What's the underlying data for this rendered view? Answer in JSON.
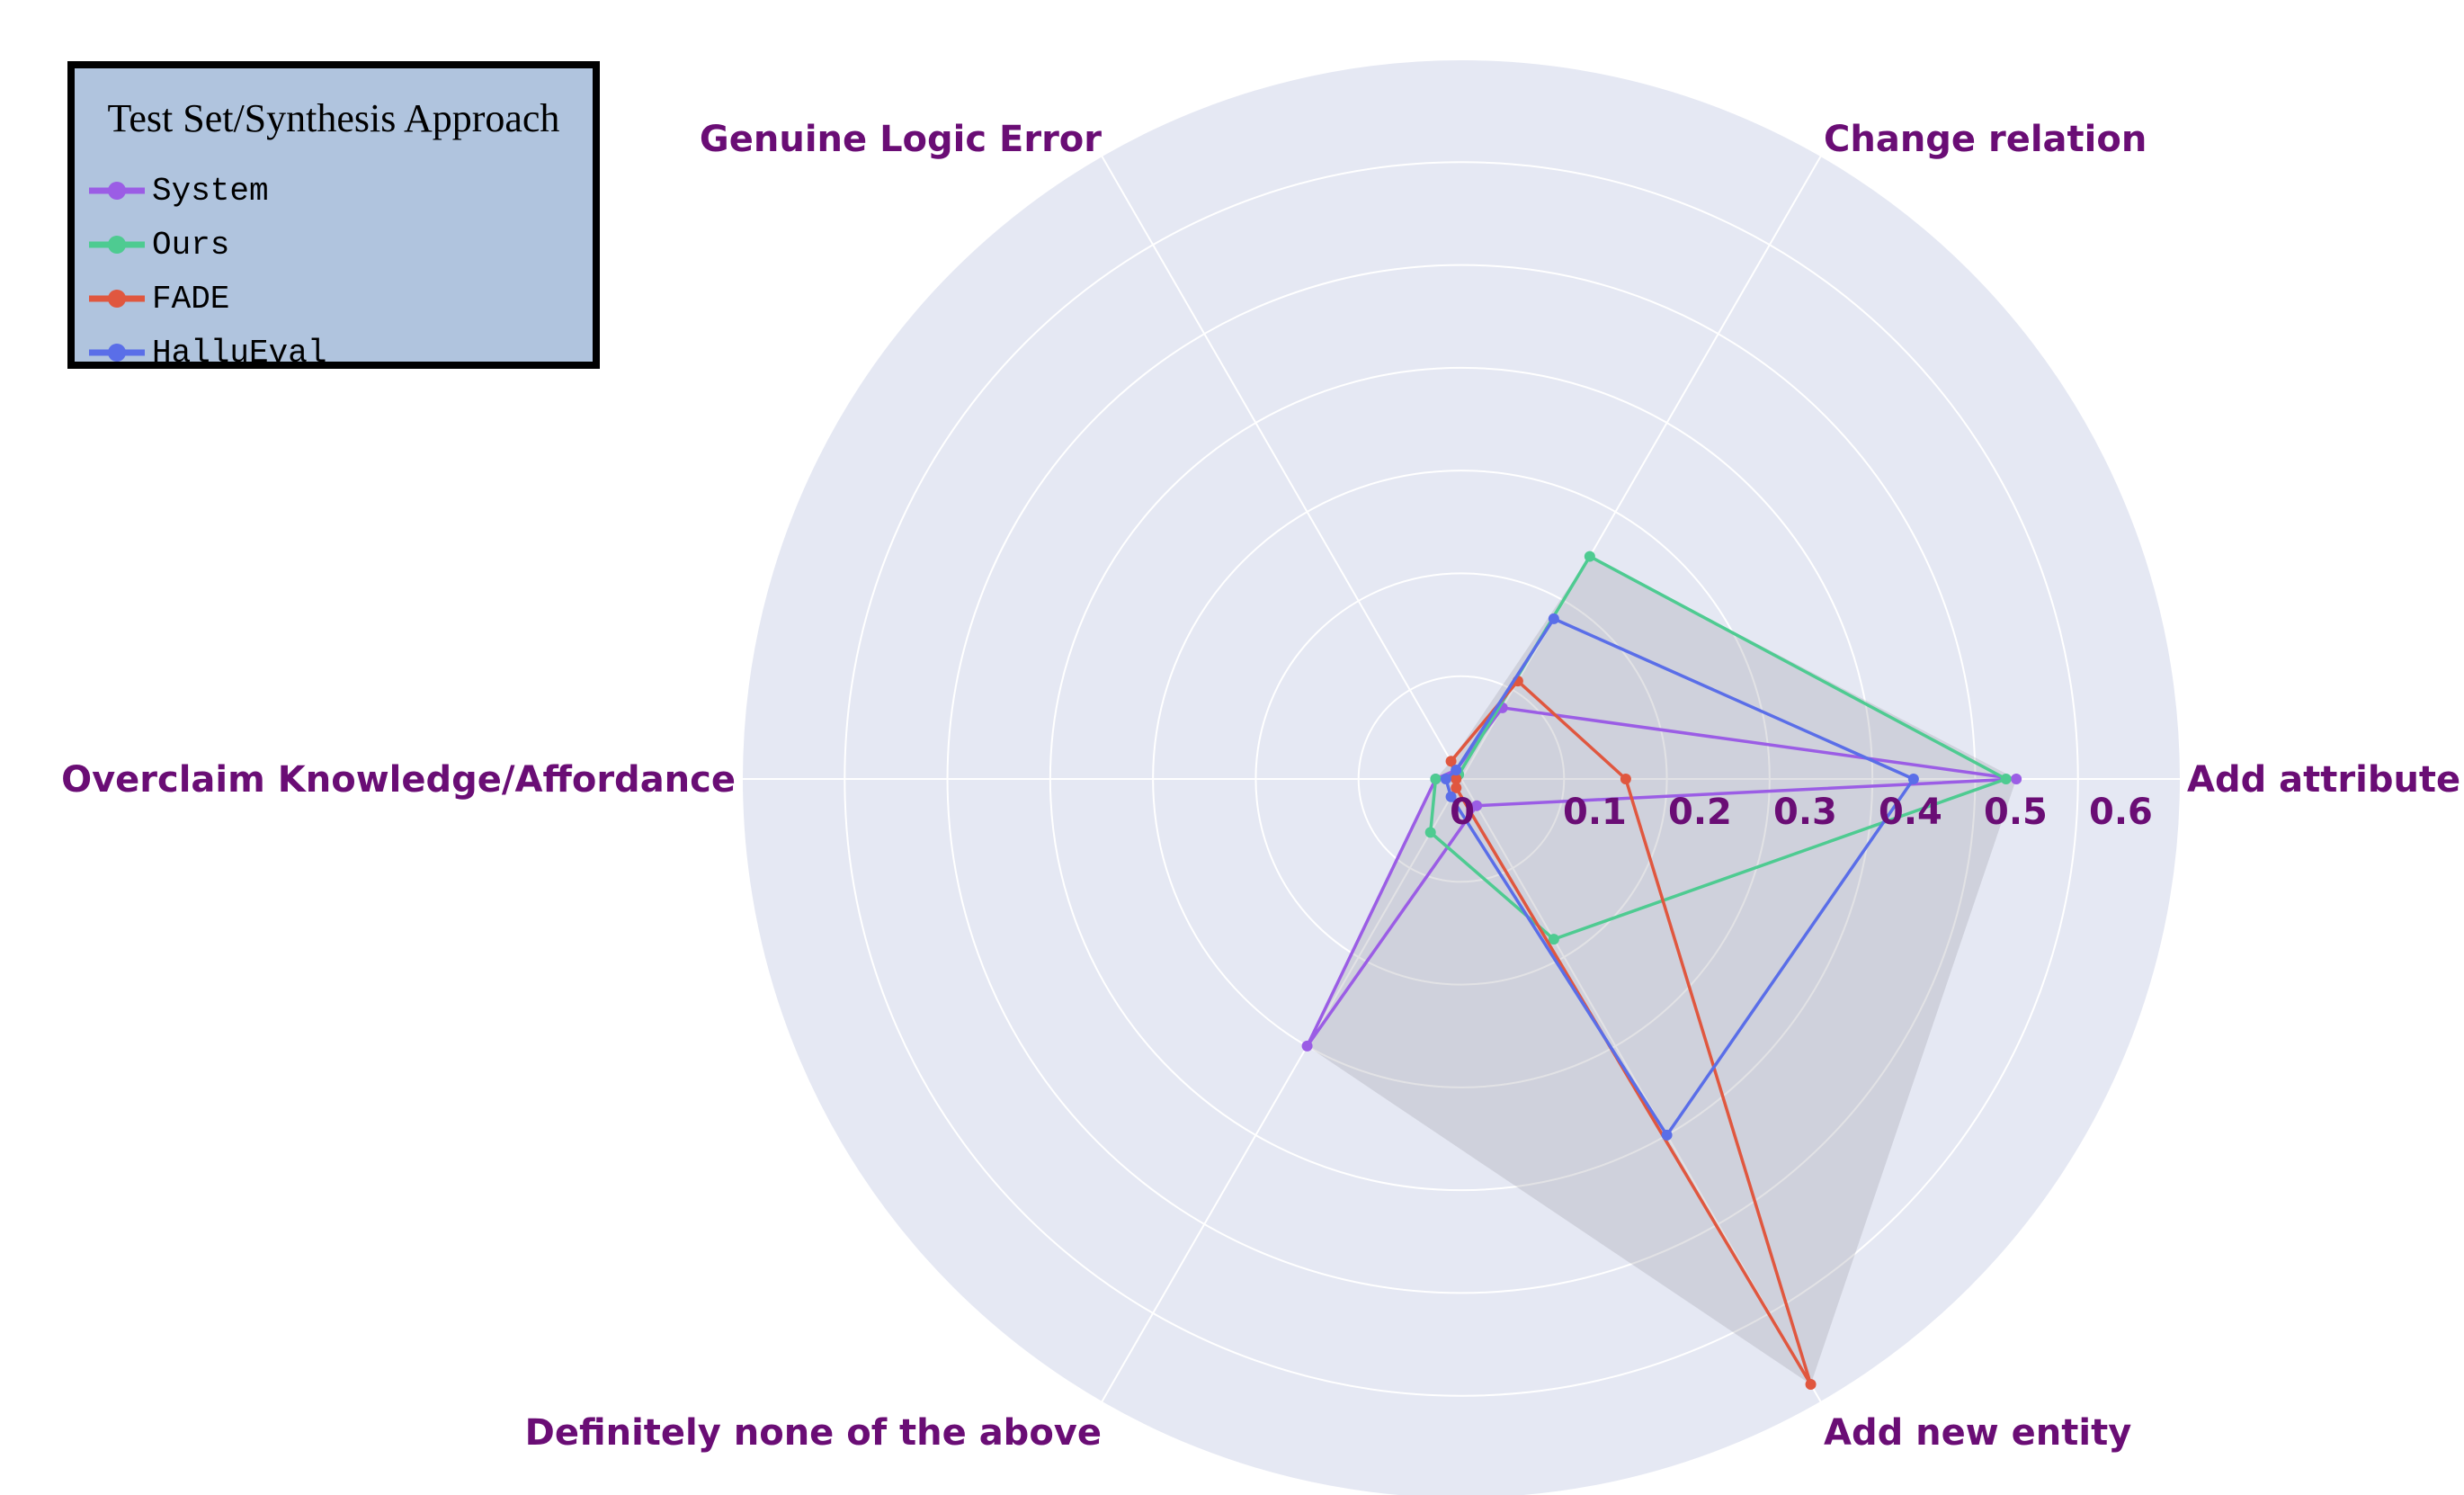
{
  "chart_data": {
    "type": "radar",
    "axes": [
      "Add attribute",
      "Change relation",
      "Genuine Logic Error",
      "Overclaim Knowledge/Affordance",
      "Definitely none of the above",
      "Add new entity"
    ],
    "radial_range": [
      0,
      0.7
    ],
    "radial_ticks": [
      "0",
      "0.1",
      "0.2",
      "0.3",
      "0.4",
      "0.5",
      "0.6"
    ],
    "legend_title": "Test Set/Synthesis Approach",
    "legend_position": "top-left",
    "grid": true,
    "background_color": "#e5e8f3",
    "series": [
      {
        "name": "System",
        "color": "#9b5de5",
        "values": [
          0.54,
          0.08,
          0.01,
          0.025,
          0.3,
          0.03
        ]
      },
      {
        "name": "Ours",
        "color": "#4ecb91",
        "values": [
          0.53,
          0.25,
          0.005,
          0.025,
          0.06,
          0.18
        ]
      },
      {
        "name": "FADE",
        "color": "#e0573f",
        "values": [
          0.16,
          0.11,
          0.02,
          0.005,
          0.01,
          0.68
        ]
      },
      {
        "name": "HalluEval",
        "color": "#5a6ee8",
        "values": [
          0.44,
          0.18,
          0.01,
          0.015,
          0.02,
          0.4
        ]
      }
    ],
    "shaded_envelope": [
      0.54,
      0.25,
      0.02,
      0.025,
      0.3,
      0.68
    ]
  }
}
